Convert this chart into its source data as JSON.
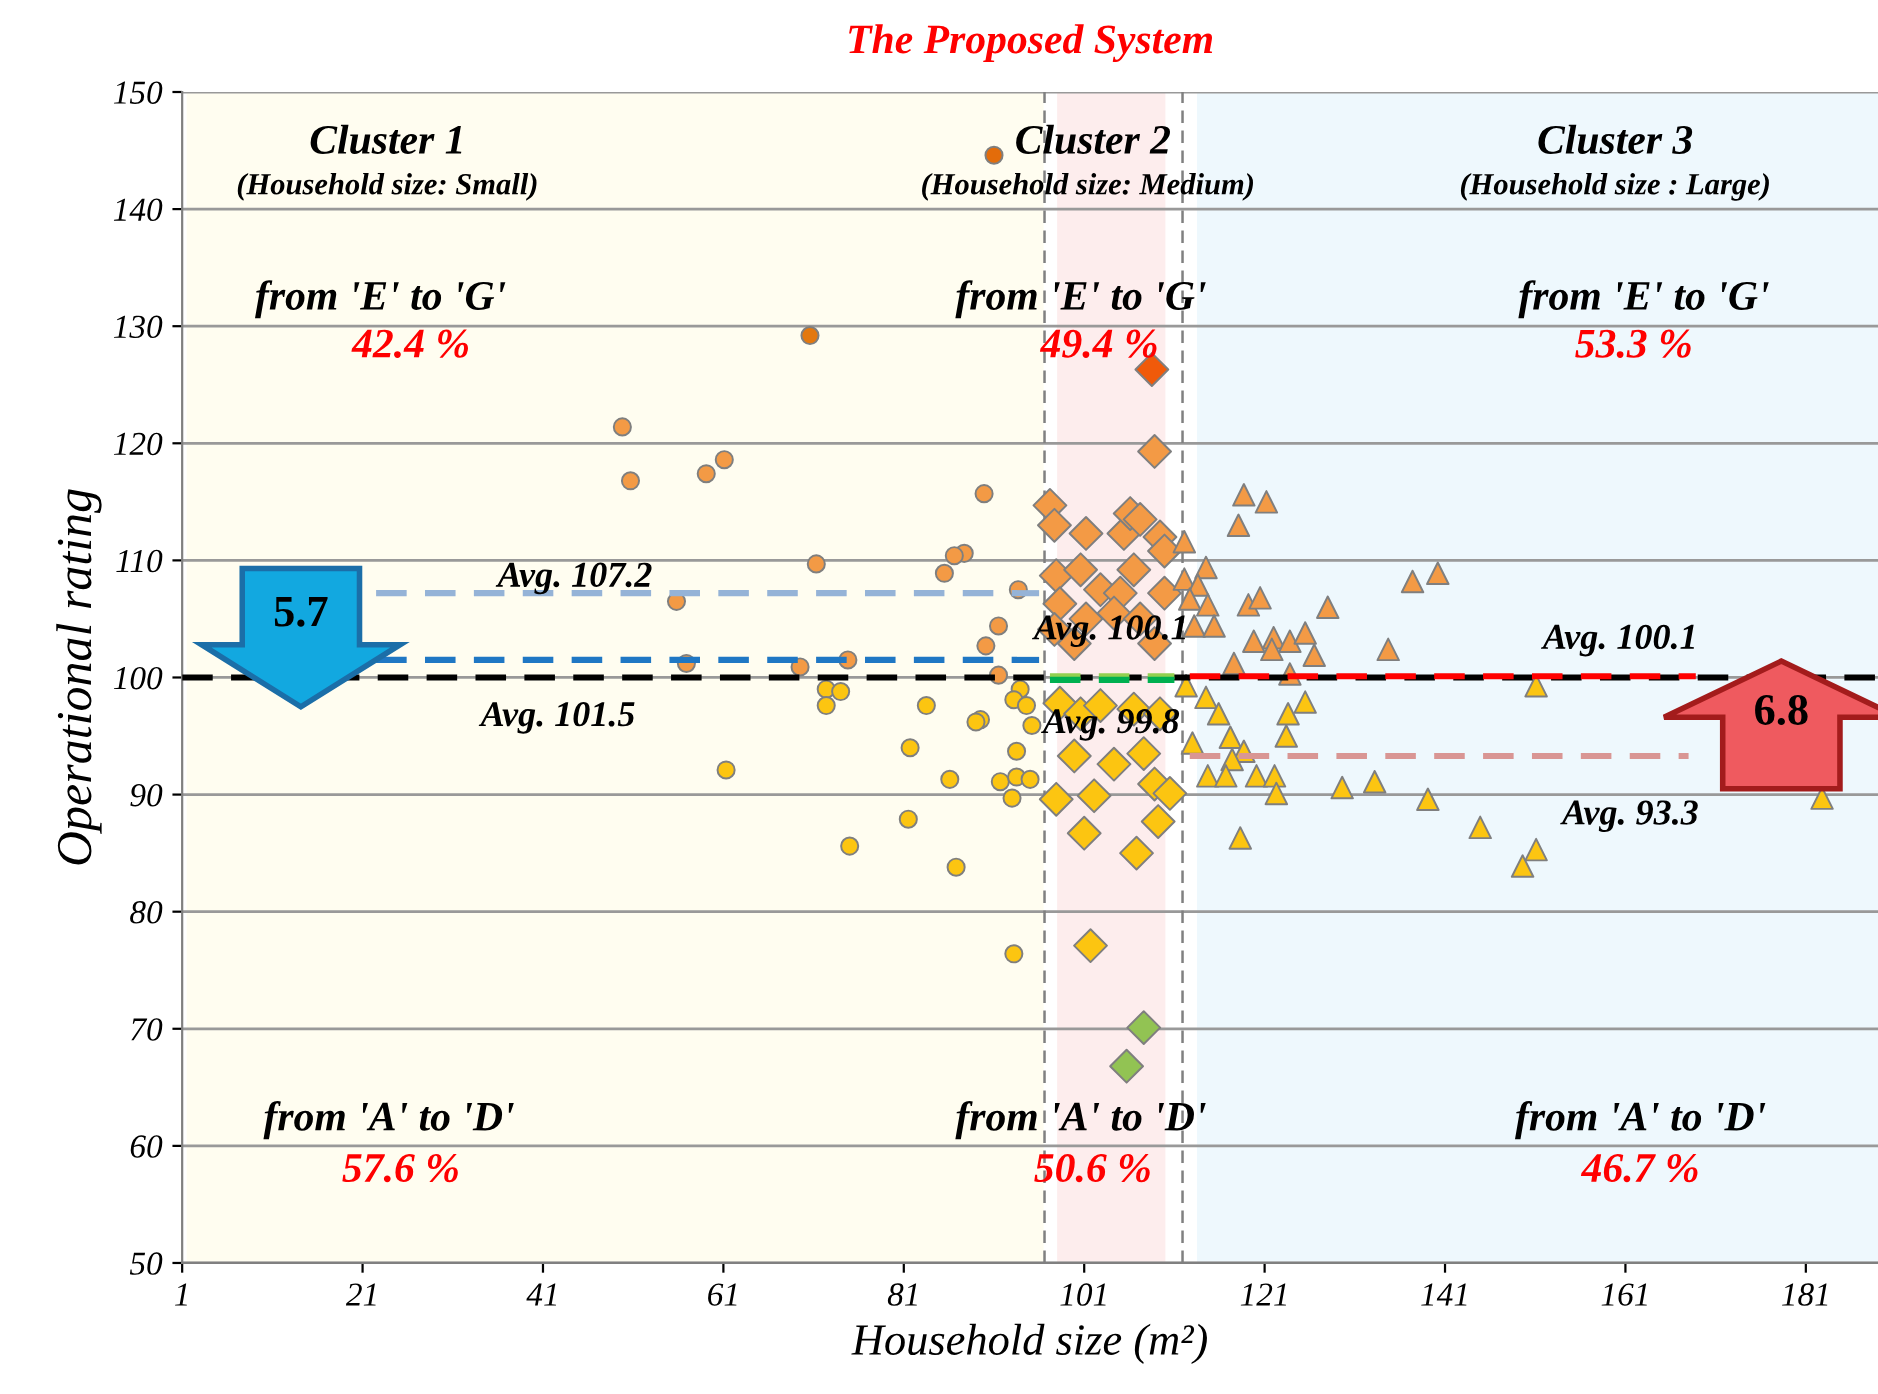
{
  "chart_data": {
    "type": "scatter",
    "title": "The Proposed System",
    "xlabel": "Household size (m²)",
    "ylabel": "Operational rating",
    "xlim": [
      1,
      189
    ],
    "xticks": [
      1,
      21,
      41,
      61,
      81,
      101,
      121,
      141,
      161,
      181
    ],
    "ylim": [
      50,
      150
    ],
    "yticks": [
      50,
      60,
      70,
      80,
      90,
      100,
      110,
      120,
      130,
      140,
      150
    ],
    "grid": "y",
    "bands": [
      {
        "axis": "x",
        "from": 1.5,
        "to": 96.5,
        "color": "#fffdf0"
      },
      {
        "axis": "x",
        "from": 98,
        "to": 110,
        "color": "#fdeded"
      },
      {
        "axis": "x",
        "from": 113.5,
        "to": 189,
        "color": "#eef8fd"
      }
    ],
    "ref_lines": [
      {
        "axis": "y",
        "value": 100,
        "color": "#000000",
        "line_style": "dashed"
      },
      {
        "axis": "x",
        "value": 96.6,
        "color": "#808080",
        "line_style": "dashed"
      },
      {
        "axis": "x",
        "value": 111.9,
        "color": "#808080",
        "line_style": "dashed"
      }
    ],
    "series": [
      {
        "marker": "circle",
        "x": [
          91,
          70.6,
          49.8,
          50.7,
          59.1,
          61.1,
          71.3,
          55.8,
          56.9,
          69.5,
          74.8,
          72.4,
          74,
          72.4,
          61.3,
          75,
          89.9,
          87.7,
          86.6,
          85.5,
          93.7,
          91.5,
          90.1,
          91.5,
          93.9,
          93.2,
          94.6,
          83.5,
          89.5,
          89,
          81.7,
          93.5,
          95.2,
          86.1,
          91.7,
          93.5,
          95,
          93,
          81.5,
          86.8,
          93.2
        ],
        "values": [
          144.6,
          129.2,
          121.4,
          116.8,
          117.4,
          118.6,
          109.7,
          106.5,
          101.2,
          100.9,
          101.5,
          99,
          98.8,
          97.6,
          92.1,
          85.6,
          115.7,
          110.6,
          110.4,
          108.9,
          107.5,
          104.4,
          102.7,
          100.2,
          99,
          98.1,
          97.6,
          97.6,
          96.4,
          96.2,
          94,
          93.7,
          95.9,
          91.3,
          91.1,
          91.5,
          91.3,
          89.7,
          87.9,
          83.8,
          76.4
        ],
        "colors": [
          "#e36c0a",
          "#e3780f",
          "#f39a45",
          "#f39a45",
          "#f39a45",
          "#f39a45",
          "#f39a45",
          "#f39a45",
          "#f39a45",
          "#f39a45",
          "#f39a45",
          "#fcc511",
          "#fcc511",
          "#fcc511",
          "#fcc511",
          "#fcc511",
          "#f39a45",
          "#f39a45",
          "#f39a45",
          "#f39a45",
          "#f39a45",
          "#f39a45",
          "#f39a45",
          "#f39a45",
          "#fcc511",
          "#fcc511",
          "#fcc511",
          "#fcc511",
          "#fcc511",
          "#fcc511",
          "#fcc511",
          "#fcc511",
          "#fcc511",
          "#fcc511",
          "#fcc511",
          "#fcc511",
          "#fcc511",
          "#fcc511",
          "#fcc511",
          "#fcc511",
          "#fcc511"
        ]
      },
      {
        "marker": "diamond",
        "x": [
          108.5,
          108.8,
          97.2,
          97.7,
          101.2,
          105.4,
          106.1,
          107.2,
          109.4,
          109.9,
          97.9,
          100.6,
          102.8,
          106.5,
          105,
          109.9,
          98.3,
          101.2,
          104.3,
          107.2,
          97.7,
          99.9,
          108.8,
          98.3,
          100.6,
          102.8,
          106.5,
          109.4,
          99.9,
          104.3,
          107.6,
          97.9,
          102.1,
          108.8,
          110.5,
          101,
          106.8,
          109.2,
          101.7,
          107.6,
          105.7
        ],
        "values": [
          126.3,
          119.3,
          114.7,
          113,
          112.3,
          112.3,
          114,
          113.5,
          112,
          110.8,
          108.7,
          109.2,
          107.5,
          109.2,
          107.2,
          107.2,
          106.3,
          105,
          105.5,
          105,
          104.1,
          102.9,
          102.9,
          97.8,
          96.9,
          97.6,
          97.3,
          96.9,
          93.3,
          92.6,
          93.5,
          89.6,
          89.9,
          90.9,
          90.1,
          86.7,
          85,
          87.7,
          77.1,
          70.1,
          66.8
        ],
        "colors": [
          "#f05a0a",
          "#f39a45",
          "#f39a45",
          "#f39a45",
          "#f39a45",
          "#f39a45",
          "#f39a45",
          "#f39a45",
          "#f39a45",
          "#f39a45",
          "#f39a45",
          "#f39a45",
          "#f39a45",
          "#f39a45",
          "#f39a45",
          "#f39a45",
          "#f39a45",
          "#f39a45",
          "#f39a45",
          "#f39a45",
          "#f39a45",
          "#f39a45",
          "#f39a45",
          "#fcc511",
          "#fcc511",
          "#fcc511",
          "#fcc511",
          "#fcc511",
          "#fcc511",
          "#fcc511",
          "#fcc511",
          "#fcc511",
          "#fcc511",
          "#fcc511",
          "#fcc511",
          "#fcc511",
          "#fcc511",
          "#fcc511",
          "#fcc511",
          "#92c353",
          "#92c353"
        ]
      },
      {
        "marker": "triangle",
        "x": [
          118.7,
          121.2,
          118.1,
          112.1,
          114.5,
          112.1,
          113.6,
          112.7,
          114.7,
          113.2,
          115.4,
          119.2,
          120.5,
          128,
          137.4,
          140.2,
          119.8,
          122,
          123.8,
          125.5,
          121.8,
          126.5,
          117.6,
          134.7,
          123.8,
          112.3,
          151.1,
          114.5,
          125.5,
          115.9,
          123.6,
          123.4,
          113,
          117.2,
          118.7,
          117.4,
          114.7,
          116.7,
          120.1,
          122.1,
          122.3,
          129.6,
          133.2,
          139.1,
          118.3,
          144.9,
          151.1,
          149.6,
          182.8
        ],
        "values": [
          115.6,
          115,
          113,
          111.6,
          109.4,
          108.4,
          107.9,
          106.7,
          106.2,
          104.4,
          104.4,
          106.2,
          106.8,
          106,
          108.2,
          108.9,
          103.1,
          103.4,
          103.1,
          103.8,
          102.4,
          101.9,
          101.2,
          102.4,
          100.3,
          99.3,
          99.3,
          98.3,
          97.9,
          96.9,
          96.9,
          95,
          94.4,
          94.9,
          93.7,
          93,
          91.6,
          91.6,
          91.6,
          91.6,
          90.1,
          90.6,
          91.1,
          89.6,
          86.3,
          87.2,
          85.3,
          83.9,
          89.7
        ],
        "colors": [
          "#f39a45",
          "#f39a45",
          "#f39a45",
          "#f39a45",
          "#f39a45",
          "#f39a45",
          "#f39a45",
          "#f39a45",
          "#f39a45",
          "#f39a45",
          "#f39a45",
          "#f39a45",
          "#f39a45",
          "#f39a45",
          "#f39a45",
          "#f39a45",
          "#f39a45",
          "#f39a45",
          "#f39a45",
          "#f39a45",
          "#f39a45",
          "#f39a45",
          "#f39a45",
          "#f39a45",
          "#f39a45",
          "#fcc511",
          "#fcc511",
          "#fcc511",
          "#fcc511",
          "#fcc511",
          "#fcc511",
          "#fcc511",
          "#fcc511",
          "#fcc511",
          "#fcc511",
          "#fcc511",
          "#fcc511",
          "#fcc511",
          "#fcc511",
          "#fcc511",
          "#fcc511",
          "#fcc511",
          "#fcc511",
          "#fcc511",
          "#fcc511",
          "#fcc511",
          "#fcc511",
          "#fcc511",
          "#fcc511"
        ]
      },
      {
        "type": "line",
        "line_style": "dashed",
        "color": "#95b3d7",
        "x": [
          22.5,
          96
        ],
        "values": [
          107.2,
          107.2
        ]
      },
      {
        "type": "line",
        "line_style": "dashed",
        "color": "#1f77c4",
        "x": [
          22.5,
          96
        ],
        "values": [
          101.5,
          101.5
        ]
      },
      {
        "type": "line",
        "line_style": "dashed",
        "color": "#92d050",
        "x": [
          97.2,
          111
        ],
        "values": [
          100.1,
          100.1
        ]
      },
      {
        "type": "line",
        "line_style": "dashed",
        "color": "#00b050",
        "x": [
          97.2,
          111
        ],
        "values": [
          99.8,
          99.8
        ]
      },
      {
        "type": "line",
        "line_style": "dashed",
        "color": "#ff0000",
        "x": [
          112.7,
          168.8
        ],
        "values": [
          100.1,
          100.1
        ]
      },
      {
        "type": "line",
        "line_style": "dashed",
        "color": "#d99694",
        "x": [
          112.7,
          168
        ],
        "values": [
          93.3,
          93.3
        ]
      }
    ],
    "annotations": [
      "Cluster 1",
      "(Household size: Small)",
      "Cluster 2",
      "(Household size: Medium)",
      "Cluster 3",
      "(Household size : Large)",
      "from 'E' to 'G'",
      "42.4 %",
      "from 'E' to 'G'",
      "49.4 %",
      "from 'E' to 'G'",
      "53.3 %",
      "from 'A' to 'D'",
      "57.6 %",
      "from 'A' to 'D'",
      "50.6 %",
      "from 'A' to 'D'",
      "46.7 %",
      "Avg. 107.2",
      "Avg. 101.5",
      "Avg. 100.1",
      "Avg. 93.3",
      "5.7",
      "6.8",
      {
        "text": "Avg. 100.1",
        "x": 104,
        "y": 104
      },
      {
        "text": "Avg. 99.8",
        "x": 104,
        "y": 96
      }
    ]
  }
}
